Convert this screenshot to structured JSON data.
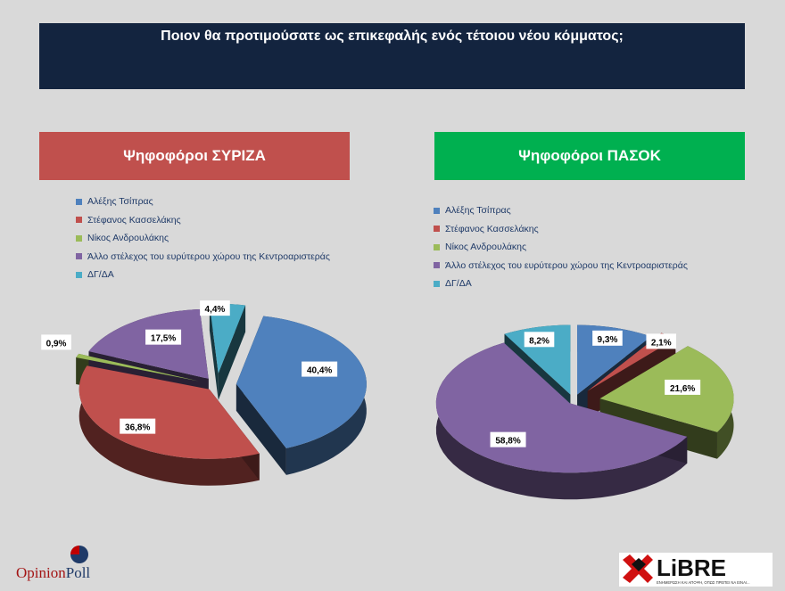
{
  "title": "Ποιον θα προτιμούσατε ως επικεφαλής ενός τέτοιου νέου κόμματος;",
  "colors": {
    "title_bg": "#13243f",
    "syriza_header": "#c0504d",
    "pasok_header": "#00b050",
    "background": "#d9d9d9"
  },
  "chart_data": [
    {
      "type": "pie",
      "title": "Ψηφοφόροι ΣΥΡΙΖΑ",
      "categories": [
        "Αλέξης Τσίπρας",
        "Στέφανος Κασσελάκης",
        "Νίκος Ανδρουλάκης",
        "Άλλο στέλεχος του ευρύτερου χώρου της Κεντροαριστεράς",
        "ΔΓ/ΔΑ"
      ],
      "values": [
        40.4,
        36.8,
        0.9,
        17.5,
        4.4
      ],
      "labels": [
        "40,4%",
        "36,8%",
        "0,9%",
        "17,5%",
        "4,4%"
      ],
      "colors": [
        "#4f81bd",
        "#c0504d",
        "#9bbb59",
        "#8064a2",
        "#4bacc6"
      ],
      "legend": "top-left",
      "style": "3d-exploded"
    },
    {
      "type": "pie",
      "title": "Ψηφοφόροι ΠΑΣΟΚ",
      "categories": [
        "Αλέξης Τσίπρας",
        "Στέφανος Κασσελάκης",
        "Νίκος Ανδρουλάκης",
        "Άλλο στέλεχος του ευρύτερου χώρου της Κεντροαριστεράς",
        "ΔΓ/ΔΑ"
      ],
      "values": [
        9.3,
        2.1,
        21.6,
        58.8,
        8.2
      ],
      "labels": [
        "9,3%",
        "2,1%",
        "21,6%",
        "58,8%",
        "8,2%"
      ],
      "colors": [
        "#4f81bd",
        "#c0504d",
        "#9bbb59",
        "#8064a2",
        "#4bacc6"
      ],
      "legend": "top-left",
      "style": "3d-exploded"
    }
  ],
  "logos": {
    "opinion_poll": "OpinionPoll",
    "libre": "LiBRE",
    "libre_tagline": "ΕΝΗΜΕΡΩΣΗ ΚΑΙ ΑΠΟΨΗ, ΟΠΩΣ ΠΡΕΠΕΙ ΝΑ ΕΙΝΑΙ..."
  }
}
